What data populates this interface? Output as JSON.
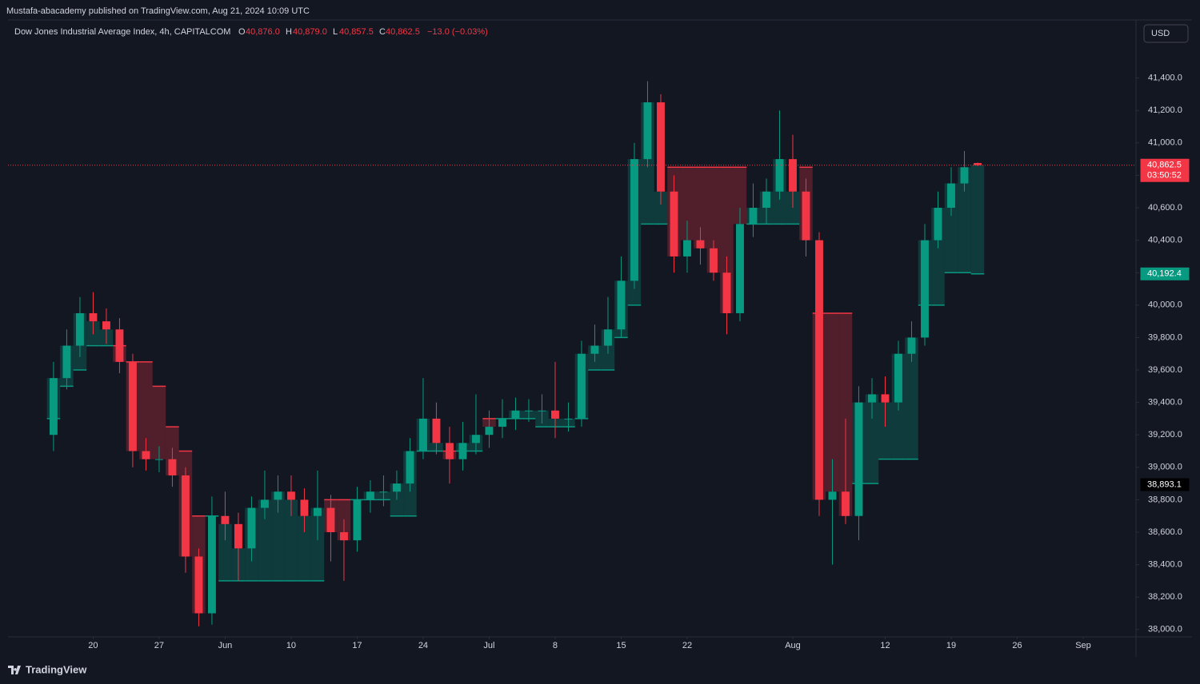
{
  "header": {
    "published": "Mustafa-abacademy published on TradingView.com, Aug 21, 2024 10:09 UTC",
    "footer": "TradingView"
  },
  "chart_data": {
    "type": "candlestick",
    "title": "Dow Jones Industrial Average Index, 4h, CAPITALCOM",
    "legend": {
      "o_key": "O",
      "o": "40,876.0",
      "h_key": "H",
      "h": "40,879.0",
      "l_key": "L",
      "l": "40,857.5",
      "c_key": "C",
      "c": "40,862.5",
      "change": "−13.0 (−0.03%)"
    },
    "currency": "USD",
    "up_color": "#089981",
    "down_color": "#f23645",
    "candles": [
      {
        "open": 39200,
        "high": 39650,
        "low": 39100,
        "close": 39550
      },
      {
        "open": 39550,
        "high": 39850,
        "low": 39480,
        "close": 39750
      },
      {
        "open": 39750,
        "high": 40050,
        "low": 39680,
        "close": 39950
      },
      {
        "open": 39950,
        "high": 40080,
        "low": 39820,
        "close": 39900
      },
      {
        "open": 39900,
        "high": 39980,
        "low": 39760,
        "close": 39850
      },
      {
        "open": 39850,
        "high": 39920,
        "low": 39580,
        "close": 39650
      },
      {
        "open": 39650,
        "high": 39700,
        "low": 39000,
        "close": 39100
      },
      {
        "open": 39100,
        "high": 39180,
        "low": 38980,
        "close": 39050
      },
      {
        "open": 39050,
        "high": 39130,
        "low": 38970,
        "close": 39050
      },
      {
        "open": 39050,
        "high": 39120,
        "low": 38880,
        "close": 38950
      },
      {
        "open": 38950,
        "high": 39000,
        "low": 38350,
        "close": 38450
      },
      {
        "open": 38450,
        "high": 38500,
        "low": 38020,
        "close": 38100
      },
      {
        "open": 38100,
        "high": 38820,
        "low": 38030,
        "close": 38700
      },
      {
        "open": 38700,
        "high": 38850,
        "low": 38550,
        "close": 38650
      },
      {
        "open": 38650,
        "high": 38720,
        "low": 38300,
        "close": 38500
      },
      {
        "open": 38500,
        "high": 38820,
        "low": 38420,
        "close": 38750
      },
      {
        "open": 38750,
        "high": 38980,
        "low": 38680,
        "close": 38800
      },
      {
        "open": 38800,
        "high": 38950,
        "low": 38720,
        "close": 38850
      },
      {
        "open": 38850,
        "high": 38950,
        "low": 38700,
        "close": 38800
      },
      {
        "open": 38800,
        "high": 38870,
        "low": 38600,
        "close": 38700
      },
      {
        "open": 38700,
        "high": 38980,
        "low": 38550,
        "close": 38750
      },
      {
        "open": 38750,
        "high": 38830,
        "low": 38420,
        "close": 38600
      },
      {
        "open": 38600,
        "high": 38680,
        "low": 38300,
        "close": 38550
      },
      {
        "open": 38550,
        "high": 38880,
        "low": 38480,
        "close": 38800
      },
      {
        "open": 38800,
        "high": 38920,
        "low": 38720,
        "close": 38850
      },
      {
        "open": 38850,
        "high": 38950,
        "low": 38760,
        "close": 38850
      },
      {
        "open": 38850,
        "high": 38980,
        "low": 38800,
        "close": 38900
      },
      {
        "open": 38900,
        "high": 39180,
        "low": 38850,
        "close": 39100
      },
      {
        "open": 39100,
        "high": 39550,
        "low": 39050,
        "close": 39300
      },
      {
        "open": 39300,
        "high": 39400,
        "low": 39080,
        "close": 39150
      },
      {
        "open": 39150,
        "high": 39250,
        "low": 38900,
        "close": 39050
      },
      {
        "open": 39050,
        "high": 39280,
        "low": 38980,
        "close": 39150
      },
      {
        "open": 39150,
        "high": 39450,
        "low": 39080,
        "close": 39200
      },
      {
        "open": 39200,
        "high": 39350,
        "low": 39120,
        "close": 39250
      },
      {
        "open": 39250,
        "high": 39420,
        "low": 39180,
        "close": 39300
      },
      {
        "open": 39300,
        "high": 39430,
        "low": 39230,
        "close": 39350
      },
      {
        "open": 39350,
        "high": 39420,
        "low": 39280,
        "close": 39350
      },
      {
        "open": 39350,
        "high": 39450,
        "low": 39270,
        "close": 39350
      },
      {
        "open": 39350,
        "high": 39650,
        "low": 39180,
        "close": 39300
      },
      {
        "open": 39300,
        "high": 39400,
        "low": 39220,
        "close": 39300
      },
      {
        "open": 39300,
        "high": 39780,
        "low": 39250,
        "close": 39700
      },
      {
        "open": 39700,
        "high": 39880,
        "low": 39650,
        "close": 39750
      },
      {
        "open": 39750,
        "high": 40050,
        "low": 39700,
        "close": 39850
      },
      {
        "open": 39850,
        "high": 40300,
        "low": 39800,
        "close": 40150
      },
      {
        "open": 40150,
        "high": 41000,
        "low": 40100,
        "close": 40900
      },
      {
        "open": 40900,
        "high": 41380,
        "low": 40850,
        "close": 41250
      },
      {
        "open": 41250,
        "high": 41300,
        "low": 40620,
        "close": 40700
      },
      {
        "open": 40700,
        "high": 40800,
        "low": 40200,
        "close": 40300
      },
      {
        "open": 40300,
        "high": 40520,
        "low": 40200,
        "close": 40400
      },
      {
        "open": 40400,
        "high": 40480,
        "low": 40250,
        "close": 40350
      },
      {
        "open": 40350,
        "high": 40400,
        "low": 40150,
        "close": 40200
      },
      {
        "open": 40200,
        "high": 40300,
        "low": 39820,
        "close": 39950
      },
      {
        "open": 39950,
        "high": 40600,
        "low": 39900,
        "close": 40500
      },
      {
        "open": 40500,
        "high": 40750,
        "low": 40420,
        "close": 40600
      },
      {
        "open": 40600,
        "high": 40780,
        "low": 40500,
        "close": 40700
      },
      {
        "open": 40700,
        "high": 41200,
        "low": 40650,
        "close": 40900
      },
      {
        "open": 40900,
        "high": 41050,
        "low": 40600,
        "close": 40700
      },
      {
        "open": 40700,
        "high": 40780,
        "low": 40300,
        "close": 40400
      },
      {
        "open": 40400,
        "high": 40450,
        "low": 38700,
        "close": 38800
      },
      {
        "open": 38800,
        "high": 39050,
        "low": 38400,
        "close": 38850
      },
      {
        "open": 38850,
        "high": 39300,
        "low": 38650,
        "close": 38700
      },
      {
        "open": 38700,
        "high": 39500,
        "low": 38550,
        "close": 39400
      },
      {
        "open": 39400,
        "high": 39550,
        "low": 39300,
        "close": 39450
      },
      {
        "open": 39450,
        "high": 39560,
        "low": 39250,
        "close": 39400
      },
      {
        "open": 39400,
        "high": 39780,
        "low": 39350,
        "close": 39700
      },
      {
        "open": 39700,
        "high": 39900,
        "low": 39650,
        "close": 39800
      },
      {
        "open": 39800,
        "high": 40500,
        "low": 39750,
        "close": 40400
      },
      {
        "open": 40400,
        "high": 40700,
        "low": 40350,
        "close": 40600
      },
      {
        "open": 40600,
        "high": 40850,
        "low": 40550,
        "close": 40750
      },
      {
        "open": 40750,
        "high": 40950,
        "low": 40700,
        "close": 40850
      },
      {
        "open": 40876,
        "high": 40879,
        "low": 40857.5,
        "close": 40862.5
      }
    ],
    "trail": [
      39300,
      39500,
      39600,
      39750,
      39750,
      39750,
      39650,
      39650,
      39500,
      39250,
      39100,
      38700,
      38700,
      38300,
      38300,
      38300,
      38300,
      38300,
      38300,
      38300,
      38300,
      38800,
      38800,
      38800,
      38800,
      38800,
      38700,
      38700,
      39100,
      39100,
      39100,
      39100,
      39100,
      39300,
      39300,
      39300,
      39300,
      39250,
      39250,
      39250,
      39300,
      39600,
      39600,
      39800,
      40000,
      40500,
      40500,
      40850,
      40850,
      40850,
      40850,
      40850,
      40850,
      40500,
      40500,
      40500,
      40500,
      40850,
      39950,
      39950,
      39950,
      38900,
      38900,
      39050,
      39050,
      39050,
      40000,
      40000,
      40200,
      40200,
      40192.4
    ],
    "xlim": [
      -3.45,
      82
    ],
    "xticks": [
      {
        "value": 3,
        "label": "20"
      },
      {
        "value": 8,
        "label": "27"
      },
      {
        "value": 13,
        "label": "Jun"
      },
      {
        "value": 18,
        "label": "10"
      },
      {
        "value": 23,
        "label": "17"
      },
      {
        "value": 28,
        "label": "24"
      },
      {
        "value": 33,
        "label": "Jul"
      },
      {
        "value": 38,
        "label": "8"
      },
      {
        "value": 43,
        "label": "15"
      },
      {
        "value": 48,
        "label": "22"
      },
      {
        "value": 56,
        "label": "Aug"
      },
      {
        "value": 63,
        "label": "12"
      },
      {
        "value": 68,
        "label": "19"
      },
      {
        "value": 73,
        "label": "26"
      },
      {
        "value": 78,
        "label": "Sep"
      }
    ],
    "ylim": [
      37940,
      41610
    ],
    "yticks": [
      {
        "value": 38000,
        "label": "38,000.0"
      },
      {
        "value": 38200,
        "label": "38,200.0"
      },
      {
        "value": 38400,
        "label": "38,400.0"
      },
      {
        "value": 38600,
        "label": "38,600.0"
      },
      {
        "value": 38800,
        "label": "38,800.0"
      },
      {
        "value": 39000,
        "label": "39,000.0"
      },
      {
        "value": 39200,
        "label": "39,200.0"
      },
      {
        "value": 39400,
        "label": "39,400.0"
      },
      {
        "value": 39600,
        "label": "39,600.0"
      },
      {
        "value": 39800,
        "label": "39,800.0"
      },
      {
        "value": 40000,
        "label": "40,000.0"
      },
      {
        "value": 40200,
        "label": "40,200.0"
      },
      {
        "value": 40400,
        "label": "40,400.0"
      },
      {
        "value": 40600,
        "label": "40,600.0"
      },
      {
        "value": 40800,
        "label": "40,800.0"
      },
      {
        "value": 41000,
        "label": "41,000.0"
      },
      {
        "value": 41200,
        "label": "41,200.0"
      },
      {
        "value": 41400,
        "label": "41,400.0"
      }
    ],
    "price_labels": [
      {
        "value": 40862.5,
        "label": "40,862.5",
        "countdown": "03:50:52",
        "color": "#f23645"
      },
      {
        "value": 40192.4,
        "label": "40,192.4",
        "color": "#089981"
      },
      {
        "value": 38893.1,
        "label": "38,893.1",
        "color": "#000000"
      }
    ]
  }
}
